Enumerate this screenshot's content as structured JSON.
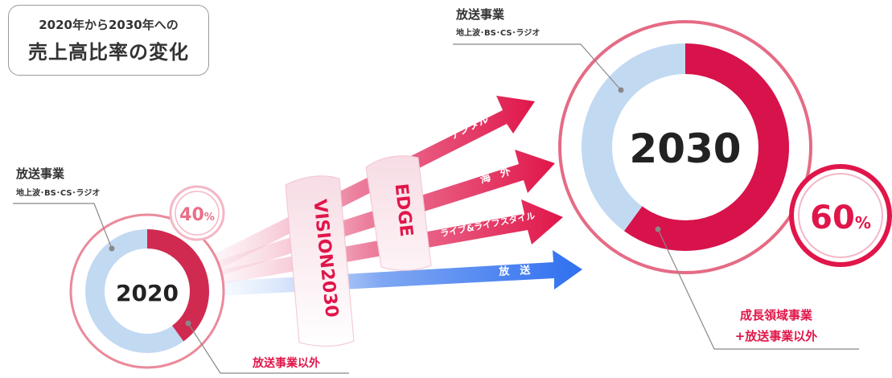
{
  "title": {
    "line1": "2020年から2030年への",
    "line2": "売上高比率の変化"
  },
  "colors": {
    "red": "#e0164a",
    "blue": "#2f6ff0",
    "light_blue": "#c2d9f2",
    "pink_ring": "#ea8a9a"
  },
  "circle_2020": {
    "year": "2020",
    "broadcast_share": 0.6,
    "other_share": 0.4,
    "badge": {
      "value": "40",
      "unit": "%"
    },
    "broadcast_label": {
      "title": "放送事業",
      "sub": "地上波･BS･CS･ラジオ"
    },
    "other_label": "放送事業以外"
  },
  "circle_2030": {
    "year": "2030",
    "broadcast_share": 0.4,
    "other_share": 0.6,
    "badge": {
      "value": "60",
      "unit": "%"
    },
    "broadcast_label": {
      "title": "放送事業",
      "sub": "地上波･BS･CS･ラジオ"
    },
    "other_label": {
      "line1": "成長領域事業",
      "line2": "+放送事業以外"
    }
  },
  "bands": {
    "vision": "VISION2030",
    "edge": "EDGE"
  },
  "arrows": [
    {
      "label": "デジタル",
      "color": "red"
    },
    {
      "label": "海　外",
      "color": "red"
    },
    {
      "label": "ライブ&ライフスタイル",
      "color": "red"
    },
    {
      "label": "放　送",
      "color": "blue"
    }
  ]
}
